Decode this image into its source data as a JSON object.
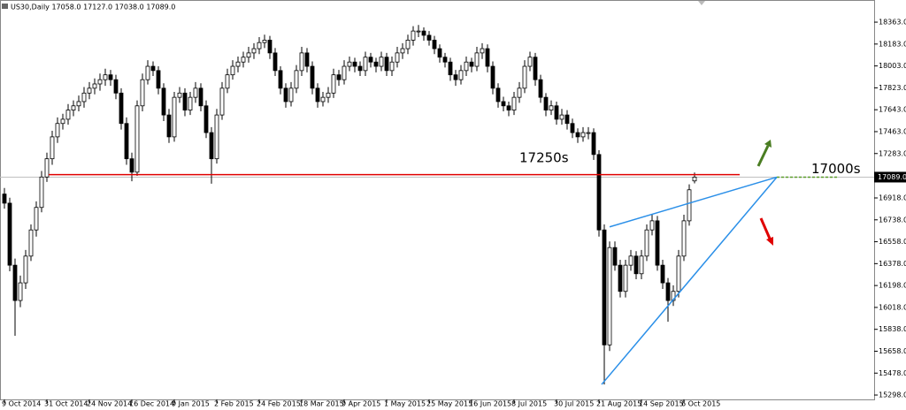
{
  "chart_data": {
    "type": "candlestick",
    "header": "US30,Daily  17058.0 17127.0 17038.0 17089.0",
    "ohlc": [
      [
        16950,
        17000,
        16830,
        16875
      ],
      [
        16875,
        16920,
        16315,
        16365
      ],
      [
        16365,
        16420,
        15785,
        16075
      ],
      [
        16075,
        16280,
        16020,
        16220
      ],
      [
        16220,
        16490,
        16170,
        16440
      ],
      [
        16440,
        16700,
        16400,
        16655
      ],
      [
        16655,
        16890,
        16600,
        16840
      ],
      [
        16840,
        17140,
        16800,
        17090
      ],
      [
        17090,
        17290,
        17050,
        17240
      ],
      [
        17240,
        17470,
        17190,
        17420
      ],
      [
        17420,
        17580,
        17370,
        17530
      ],
      [
        17530,
        17610,
        17480,
        17565
      ],
      [
        17565,
        17690,
        17520,
        17640
      ],
      [
        17640,
        17720,
        17590,
        17675
      ],
      [
        17675,
        17760,
        17630,
        17710
      ],
      [
        17710,
        17830,
        17660,
        17780
      ],
      [
        17780,
        17870,
        17730,
        17820
      ],
      [
        17820,
        17900,
        17770,
        17855
      ],
      [
        17855,
        17940,
        17800,
        17890
      ],
      [
        17890,
        17980,
        17840,
        17930
      ],
      [
        17930,
        17970,
        17840,
        17890
      ],
      [
        17890,
        17930,
        17730,
        17780
      ],
      [
        17780,
        17820,
        17480,
        17530
      ],
      [
        17530,
        17580,
        17190,
        17240
      ],
      [
        17240,
        17290,
        17055,
        17130
      ],
      [
        17130,
        17720,
        17100,
        17675
      ],
      [
        17675,
        17940,
        17630,
        17890
      ],
      [
        17890,
        18050,
        17850,
        18000
      ],
      [
        18000,
        18040,
        17920,
        17965
      ],
      [
        17965,
        18000,
        17770,
        17820
      ],
      [
        17820,
        17860,
        17550,
        17600
      ],
      [
        17600,
        17650,
        17370,
        17420
      ],
      [
        17420,
        17790,
        17380,
        17745
      ],
      [
        17745,
        17830,
        17700,
        17780
      ],
      [
        17780,
        17820,
        17590,
        17640
      ],
      [
        17640,
        17790,
        17600,
        17745
      ],
      [
        17745,
        17870,
        17700,
        17820
      ],
      [
        17820,
        17860,
        17630,
        17675
      ],
      [
        17675,
        17720,
        17410,
        17455
      ],
      [
        17455,
        17500,
        17035,
        17240
      ],
      [
        17240,
        17650,
        17200,
        17600
      ],
      [
        17600,
        17870,
        17560,
        17820
      ],
      [
        17820,
        17980,
        17780,
        17930
      ],
      [
        17930,
        18050,
        17890,
        18000
      ],
      [
        18000,
        18080,
        17950,
        18035
      ],
      [
        18035,
        18120,
        17990,
        18075
      ],
      [
        18075,
        18160,
        18030,
        18110
      ],
      [
        18110,
        18190,
        18060,
        18145
      ],
      [
        18145,
        18240,
        18100,
        18195
      ],
      [
        18195,
        18260,
        18150,
        18215
      ],
      [
        18215,
        18250,
        18060,
        18110
      ],
      [
        18110,
        18150,
        17920,
        17965
      ],
      [
        17965,
        18000,
        17770,
        17820
      ],
      [
        17820,
        17860,
        17660,
        17710
      ],
      [
        17710,
        17870,
        17670,
        17820
      ],
      [
        17820,
        18010,
        17780,
        17965
      ],
      [
        17965,
        18160,
        17920,
        18110
      ],
      [
        18110,
        18150,
        17950,
        18000
      ],
      [
        18000,
        18040,
        17770,
        17820
      ],
      [
        17820,
        17860,
        17660,
        17710
      ],
      [
        17710,
        17790,
        17670,
        17745
      ],
      [
        17745,
        17830,
        17700,
        17780
      ],
      [
        17780,
        17980,
        17740,
        17930
      ],
      [
        17930,
        17970,
        17840,
        17890
      ],
      [
        17890,
        18050,
        17850,
        18000
      ],
      [
        18000,
        18080,
        17960,
        18035
      ],
      [
        18035,
        18070,
        17950,
        18000
      ],
      [
        18000,
        18040,
        17920,
        17965
      ],
      [
        17965,
        18120,
        17920,
        18075
      ],
      [
        18075,
        18110,
        17990,
        18035
      ],
      [
        18035,
        18070,
        17950,
        18000
      ],
      [
        18000,
        18120,
        17960,
        18075
      ],
      [
        18075,
        18110,
        17920,
        17965
      ],
      [
        17965,
        18080,
        17920,
        18035
      ],
      [
        18035,
        18160,
        17990,
        18110
      ],
      [
        18110,
        18190,
        18060,
        18145
      ],
      [
        18145,
        18260,
        18100,
        18215
      ],
      [
        18215,
        18330,
        18170,
        18290
      ],
      [
        18290,
        18340,
        18240,
        18290
      ],
      [
        18290,
        18320,
        18210,
        18255
      ],
      [
        18255,
        18290,
        18170,
        18215
      ],
      [
        18215,
        18250,
        18100,
        18145
      ],
      [
        18145,
        18180,
        18030,
        18075
      ],
      [
        18075,
        18110,
        17990,
        18035
      ],
      [
        18035,
        18070,
        17880,
        17930
      ],
      [
        17930,
        17970,
        17840,
        17890
      ],
      [
        17890,
        18010,
        17850,
        17965
      ],
      [
        17965,
        18080,
        17920,
        18035
      ],
      [
        18035,
        18070,
        17950,
        18000
      ],
      [
        18000,
        18160,
        17960,
        18110
      ],
      [
        18110,
        18190,
        18060,
        18145
      ],
      [
        18145,
        18180,
        17950,
        18000
      ],
      [
        18000,
        18040,
        17770,
        17820
      ],
      [
        17820,
        17860,
        17660,
        17710
      ],
      [
        17710,
        17750,
        17630,
        17675
      ],
      [
        17675,
        17710,
        17590,
        17640
      ],
      [
        17640,
        17790,
        17600,
        17745
      ],
      [
        17745,
        17870,
        17700,
        17820
      ],
      [
        17820,
        18050,
        17780,
        18000
      ],
      [
        18000,
        18120,
        17960,
        18075
      ],
      [
        18075,
        18110,
        17840,
        17890
      ],
      [
        17890,
        17930,
        17700,
        17745
      ],
      [
        17745,
        17780,
        17590,
        17640
      ],
      [
        17640,
        17720,
        17600,
        17675
      ],
      [
        17675,
        17710,
        17520,
        17565
      ],
      [
        17565,
        17650,
        17520,
        17600
      ],
      [
        17600,
        17640,
        17480,
        17530
      ],
      [
        17530,
        17570,
        17410,
        17455
      ],
      [
        17455,
        17490,
        17370,
        17420
      ],
      [
        17420,
        17500,
        17380,
        17455
      ],
      [
        17455,
        17500,
        17400,
        17455
      ],
      [
        17455,
        17490,
        17230,
        17275
      ],
      [
        17275,
        17310,
        16600,
        16655
      ],
      [
        16655,
        16700,
        15385,
        15710
      ],
      [
        15710,
        16560,
        15660,
        16510
      ],
      [
        16510,
        16560,
        16320,
        16365
      ],
      [
        16365,
        16410,
        16100,
        16150
      ],
      [
        16150,
        16410,
        16100,
        16365
      ],
      [
        16365,
        16490,
        16320,
        16440
      ],
      [
        16440,
        16480,
        16250,
        16295
      ],
      [
        16295,
        16490,
        16250,
        16440
      ],
      [
        16440,
        16700,
        16400,
        16655
      ],
      [
        16655,
        16780,
        16610,
        16730
      ],
      [
        16730,
        16770,
        16320,
        16365
      ],
      [
        16365,
        16410,
        16170,
        16220
      ],
      [
        16220,
        16260,
        15900,
        16075
      ],
      [
        16075,
        16200,
        16030,
        16150
      ],
      [
        16150,
        16490,
        16100,
        16440
      ],
      [
        16440,
        16780,
        16400,
        16730
      ],
      [
        16730,
        17030,
        16690,
        16985
      ],
      [
        17058,
        17127,
        17038,
        17089
      ]
    ],
    "ylim": [
      15262,
      18545
    ],
    "yticks": [
      {
        "value": 18363,
        "label": "18363.0"
      },
      {
        "value": 18183,
        "label": "18183.0"
      },
      {
        "value": 18003,
        "label": "18003.0"
      },
      {
        "value": 17823,
        "label": "17823.0"
      },
      {
        "value": 17643,
        "label": "17643.0"
      },
      {
        "value": 17463,
        "label": "17463.0"
      },
      {
        "value": 17283,
        "label": "17283.0"
      },
      {
        "value": 16918,
        "label": "16918.0"
      },
      {
        "value": 16738,
        "label": "16738.0"
      },
      {
        "value": 16558,
        "label": "16558.0"
      },
      {
        "value": 16378,
        "label": "16378.0"
      },
      {
        "value": 16198,
        "label": "16198.0"
      },
      {
        "value": 16018,
        "label": "16018.0"
      },
      {
        "value": 15838,
        "label": "15838.0"
      },
      {
        "value": 15658,
        "label": "15658.0"
      },
      {
        "value": 15478,
        "label": "15478.0"
      },
      {
        "value": 15298,
        "label": "15298.0"
      }
    ],
    "xticks": [
      {
        "value": 0,
        "label": "9 Oct 2014"
      },
      {
        "value": 8,
        "label": "31 Oct 2014"
      },
      {
        "value": 16,
        "label": "24 Nov 2014"
      },
      {
        "value": 24,
        "label": "16 Dec 2014"
      },
      {
        "value": 32,
        "label": "9 Jan 2015"
      },
      {
        "value": 40,
        "label": "2 Feb 2015"
      },
      {
        "value": 48,
        "label": "24 Feb 2015"
      },
      {
        "value": 56,
        "label": "18 Mar 2015"
      },
      {
        "value": 64,
        "label": "9 Apr 2015"
      },
      {
        "value": 72,
        "label": "1 May 2015"
      },
      {
        "value": 80,
        "label": "25 May 2015"
      },
      {
        "value": 88,
        "label": "16 Jun 2015"
      },
      {
        "value": 96,
        "label": "8 Jul 2015"
      },
      {
        "value": 104,
        "label": "30 Jul 2015"
      },
      {
        "value": 112,
        "label": "21 Aug 2015"
      },
      {
        "value": 120,
        "label": "14 Sep 2015"
      },
      {
        "value": 128,
        "label": "6 Oct 2015"
      }
    ],
    "current_price": {
      "value": 17089,
      "label": "17089.0"
    },
    "level_line": {
      "value": 17110,
      "color": "#e00000"
    },
    "trendlines": [
      {
        "color": "#2a8fe8",
        "x": [
          112.5,
          145.5
        ],
        "y": [
          15385,
          17089
        ]
      },
      {
        "color": "#2a8fe8",
        "x": [
          114,
          145.5
        ],
        "y": [
          16680,
          17089
        ]
      }
    ],
    "annotations": [
      {
        "text": "17250s",
        "x": 97,
        "y": 17245
      },
      {
        "text": "17000s",
        "x": 152,
        "y": 17155
      }
    ],
    "target_line": {
      "value": 17089,
      "color": "#5a9e2a"
    }
  }
}
